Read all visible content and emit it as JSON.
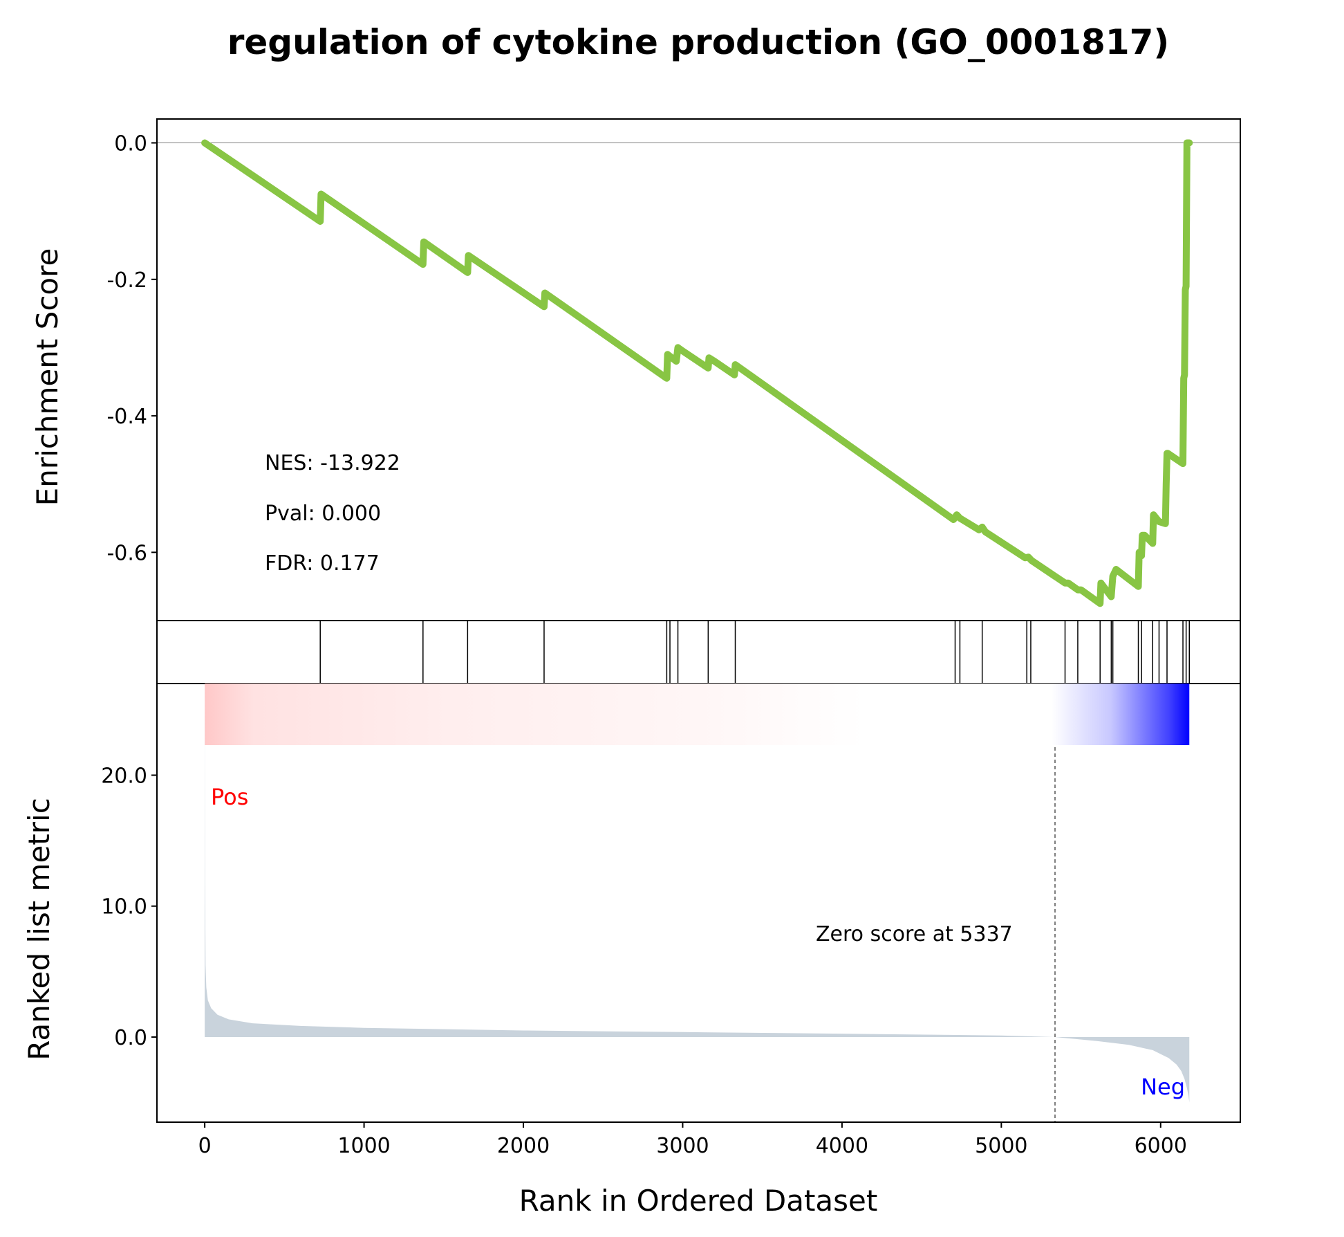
{
  "title": "regulation of cytokine production (GO_0001817)",
  "colors": {
    "es_line": "#88C544",
    "metric_fill": "#C9D3DC",
    "pos_label": "#FF0000",
    "neg_label": "#0000FF",
    "axis": "#000000"
  },
  "chart_data": [
    {
      "type": "line",
      "name": "enrichment-score",
      "ylabel": "Enrichment Score",
      "ylim": [
        -0.7,
        0.035
      ],
      "yticks": [
        0.0,
        -0.2,
        -0.4,
        -0.6
      ],
      "yticklabels": [
        "0.0",
        "-0.2",
        "-0.4",
        "-0.6"
      ],
      "xlim": [
        -300,
        6500
      ],
      "zero_line": true,
      "stats": [
        "NES: -13.922",
        "Pval: 0.000",
        "FDR: 0.177"
      ],
      "x": [
        0,
        725,
        730,
        1370,
        1375,
        1650,
        1655,
        2130,
        2135,
        2900,
        2905,
        2960,
        2970,
        3000,
        3160,
        3165,
        3200,
        3325,
        3330,
        4700,
        4720,
        4740,
        4860,
        4880,
        4900,
        5150,
        5170,
        5190,
        5400,
        5420,
        5480,
        5500,
        5620,
        5625,
        5690,
        5700,
        5720,
        5860,
        5865,
        5880,
        5885,
        5900,
        5950,
        5955,
        5990,
        6030,
        6035,
        6040,
        6045,
        6140,
        6145,
        6150,
        6155,
        6160,
        6165,
        6180
      ],
      "y": [
        0.0,
        -0.115,
        -0.075,
        -0.178,
        -0.145,
        -0.19,
        -0.165,
        -0.24,
        -0.22,
        -0.345,
        -0.31,
        -0.32,
        -0.3,
        -0.305,
        -0.33,
        -0.315,
        -0.32,
        -0.34,
        -0.325,
        -0.552,
        -0.545,
        -0.55,
        -0.567,
        -0.563,
        -0.57,
        -0.608,
        -0.607,
        -0.612,
        -0.645,
        -0.645,
        -0.655,
        -0.655,
        -0.675,
        -0.645,
        -0.665,
        -0.635,
        -0.625,
        -0.65,
        -0.6,
        -0.605,
        -0.575,
        -0.575,
        -0.587,
        -0.545,
        -0.555,
        -0.558,
        -0.5,
        -0.455,
        -0.455,
        -0.47,
        -0.345,
        -0.34,
        -0.215,
        -0.21,
        0.0,
        0.0
      ]
    },
    {
      "type": "hits",
      "name": "gene-hits",
      "xlim": [
        -300,
        6500
      ],
      "positions": [
        725,
        1370,
        1650,
        2130,
        2900,
        2920,
        2970,
        3160,
        3330,
        4710,
        4740,
        4880,
        5160,
        5185,
        5400,
        5480,
        5620,
        5690,
        5700,
        5860,
        5880,
        5950,
        5990,
        6040,
        6140,
        6160,
        6180
      ]
    },
    {
      "type": "area",
      "name": "ranked-list-metric",
      "ylabel": "Ranked list metric",
      "xlabel": "Rank in Ordered Dataset",
      "xlim": [
        -300,
        6500
      ],
      "ylim": [
        -6.5,
        27
      ],
      "xticks": [
        0,
        1000,
        2000,
        3000,
        4000,
        5000,
        6000
      ],
      "xticklabels": [
        "0",
        "1000",
        "2000",
        "3000",
        "4000",
        "5000",
        "6000"
      ],
      "yticks": [
        20.0,
        10.0,
        0.0
      ],
      "yticklabels": [
        "20.0",
        "10.0",
        "0.0"
      ],
      "x": [
        0,
        2,
        5,
        10,
        20,
        40,
        80,
        150,
        300,
        600,
        1000,
        2000,
        3000,
        4000,
        5000,
        5337,
        5600,
        5800,
        5950,
        6050,
        6100,
        6130,
        6150,
        6165,
        6175,
        6180
      ],
      "y": [
        25.5,
        12,
        5.5,
        3.8,
        2.8,
        2.2,
        1.7,
        1.35,
        1.05,
        0.85,
        0.7,
        0.5,
        0.38,
        0.26,
        0.12,
        0.0,
        -0.3,
        -0.6,
        -1.0,
        -1.6,
        -2.1,
        -2.6,
        -3.2,
        -3.9,
        -4.5,
        -5.0
      ],
      "zero_cross": 5337,
      "zero_label": "Zero score at 5337",
      "pos_label": "Pos",
      "neg_label": "Neg",
      "heatmap": {
        "from": "red",
        "to": "blue",
        "white_from": 4200,
        "white_to": 5300,
        "x_start": 0,
        "x_end": 6180
      }
    }
  ]
}
